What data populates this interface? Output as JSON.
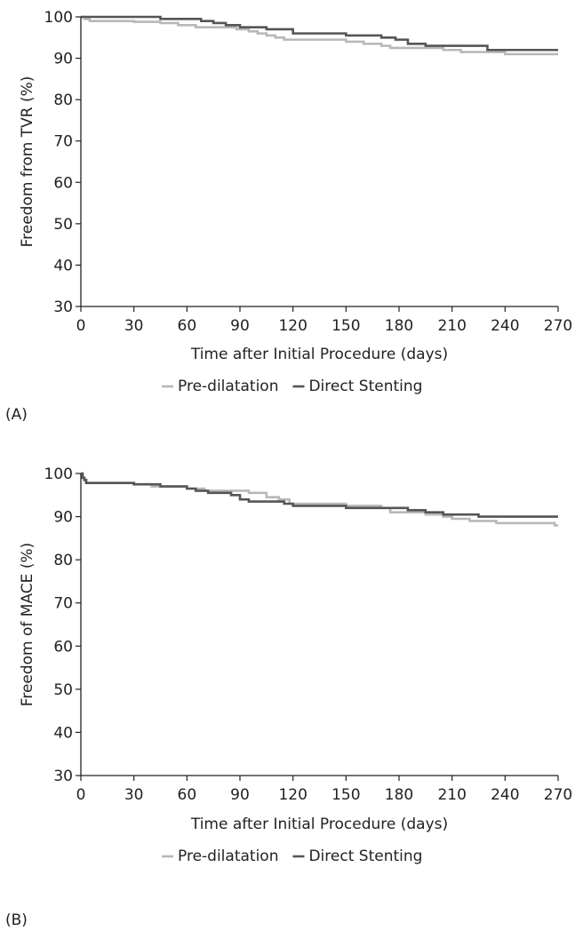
{
  "chart_data": [
    {
      "type": "line",
      "panel_label": "(A)",
      "xlabel": "Time after Initial Procedure (days)",
      "ylabel": "Freedom from TVR (%)",
      "xlim": [
        0,
        270
      ],
      "ylim": [
        30,
        100
      ],
      "xticks": [
        0,
        30,
        60,
        90,
        120,
        150,
        180,
        210,
        240,
        270
      ],
      "yticks": [
        30,
        40,
        50,
        60,
        70,
        80,
        90,
        100
      ],
      "legend_position": "bottom-center",
      "series": [
        {
          "name": "Pre-dilatation",
          "color": "#b8b8b8",
          "step": true,
          "x": [
            0,
            2,
            5,
            30,
            45,
            55,
            65,
            88,
            95,
            100,
            105,
            110,
            115,
            120,
            150,
            160,
            170,
            175,
            205,
            215,
            225,
            240,
            270
          ],
          "y": [
            100,
            99.5,
            99,
            98.8,
            98.5,
            98,
            97.5,
            97,
            96.5,
            96,
            95.5,
            95,
            94.5,
            94.5,
            94,
            93.5,
            93,
            92.5,
            92,
            91.5,
            91.5,
            91,
            91
          ]
        },
        {
          "name": "Direct Stenting",
          "color": "#555555",
          "step": true,
          "x": [
            0,
            45,
            68,
            75,
            82,
            90,
            105,
            120,
            150,
            170,
            178,
            185,
            195,
            210,
            230,
            270
          ],
          "y": [
            100,
            99.5,
            99,
            98.5,
            98,
            97.5,
            97,
            96,
            95.5,
            95,
            94.5,
            93.5,
            93,
            93,
            92,
            92
          ]
        }
      ]
    },
    {
      "type": "line",
      "panel_label": "(B)",
      "xlabel": "Time after Initial Procedure (days)",
      "ylabel": "Freedom of MACE (%)",
      "xlim": [
        0,
        270
      ],
      "ylim": [
        30,
        100
      ],
      "xticks": [
        0,
        30,
        60,
        90,
        120,
        150,
        180,
        210,
        240,
        270
      ],
      "yticks": [
        30,
        40,
        50,
        60,
        70,
        80,
        90,
        100
      ],
      "legend_position": "bottom-center",
      "series": [
        {
          "name": "Pre-dilatation",
          "color": "#b8b8b8",
          "step": true,
          "x": [
            0,
            1,
            2,
            3,
            30,
            40,
            60,
            70,
            95,
            105,
            112,
            118,
            150,
            170,
            175,
            195,
            205,
            210,
            220,
            235,
            268,
            270
          ],
          "y": [
            100,
            99,
            98.5,
            97.8,
            97.5,
            97,
            96.5,
            96,
            95.5,
            94.5,
            94,
            93,
            92.5,
            92,
            91,
            90.5,
            90,
            89.5,
            89,
            88.5,
            88,
            88
          ]
        },
        {
          "name": "Direct Stenting",
          "color": "#555555",
          "step": true,
          "x": [
            0,
            1,
            2,
            3,
            30,
            45,
            60,
            65,
            72,
            85,
            90,
            95,
            115,
            120,
            150,
            170,
            185,
            195,
            205,
            225,
            270
          ],
          "y": [
            100,
            99,
            98.5,
            97.8,
            97.5,
            97,
            96.5,
            96,
            95.5,
            95,
            94,
            93.5,
            93,
            92.5,
            92,
            92,
            91.5,
            91,
            90.5,
            90,
            90
          ]
        }
      ]
    }
  ]
}
